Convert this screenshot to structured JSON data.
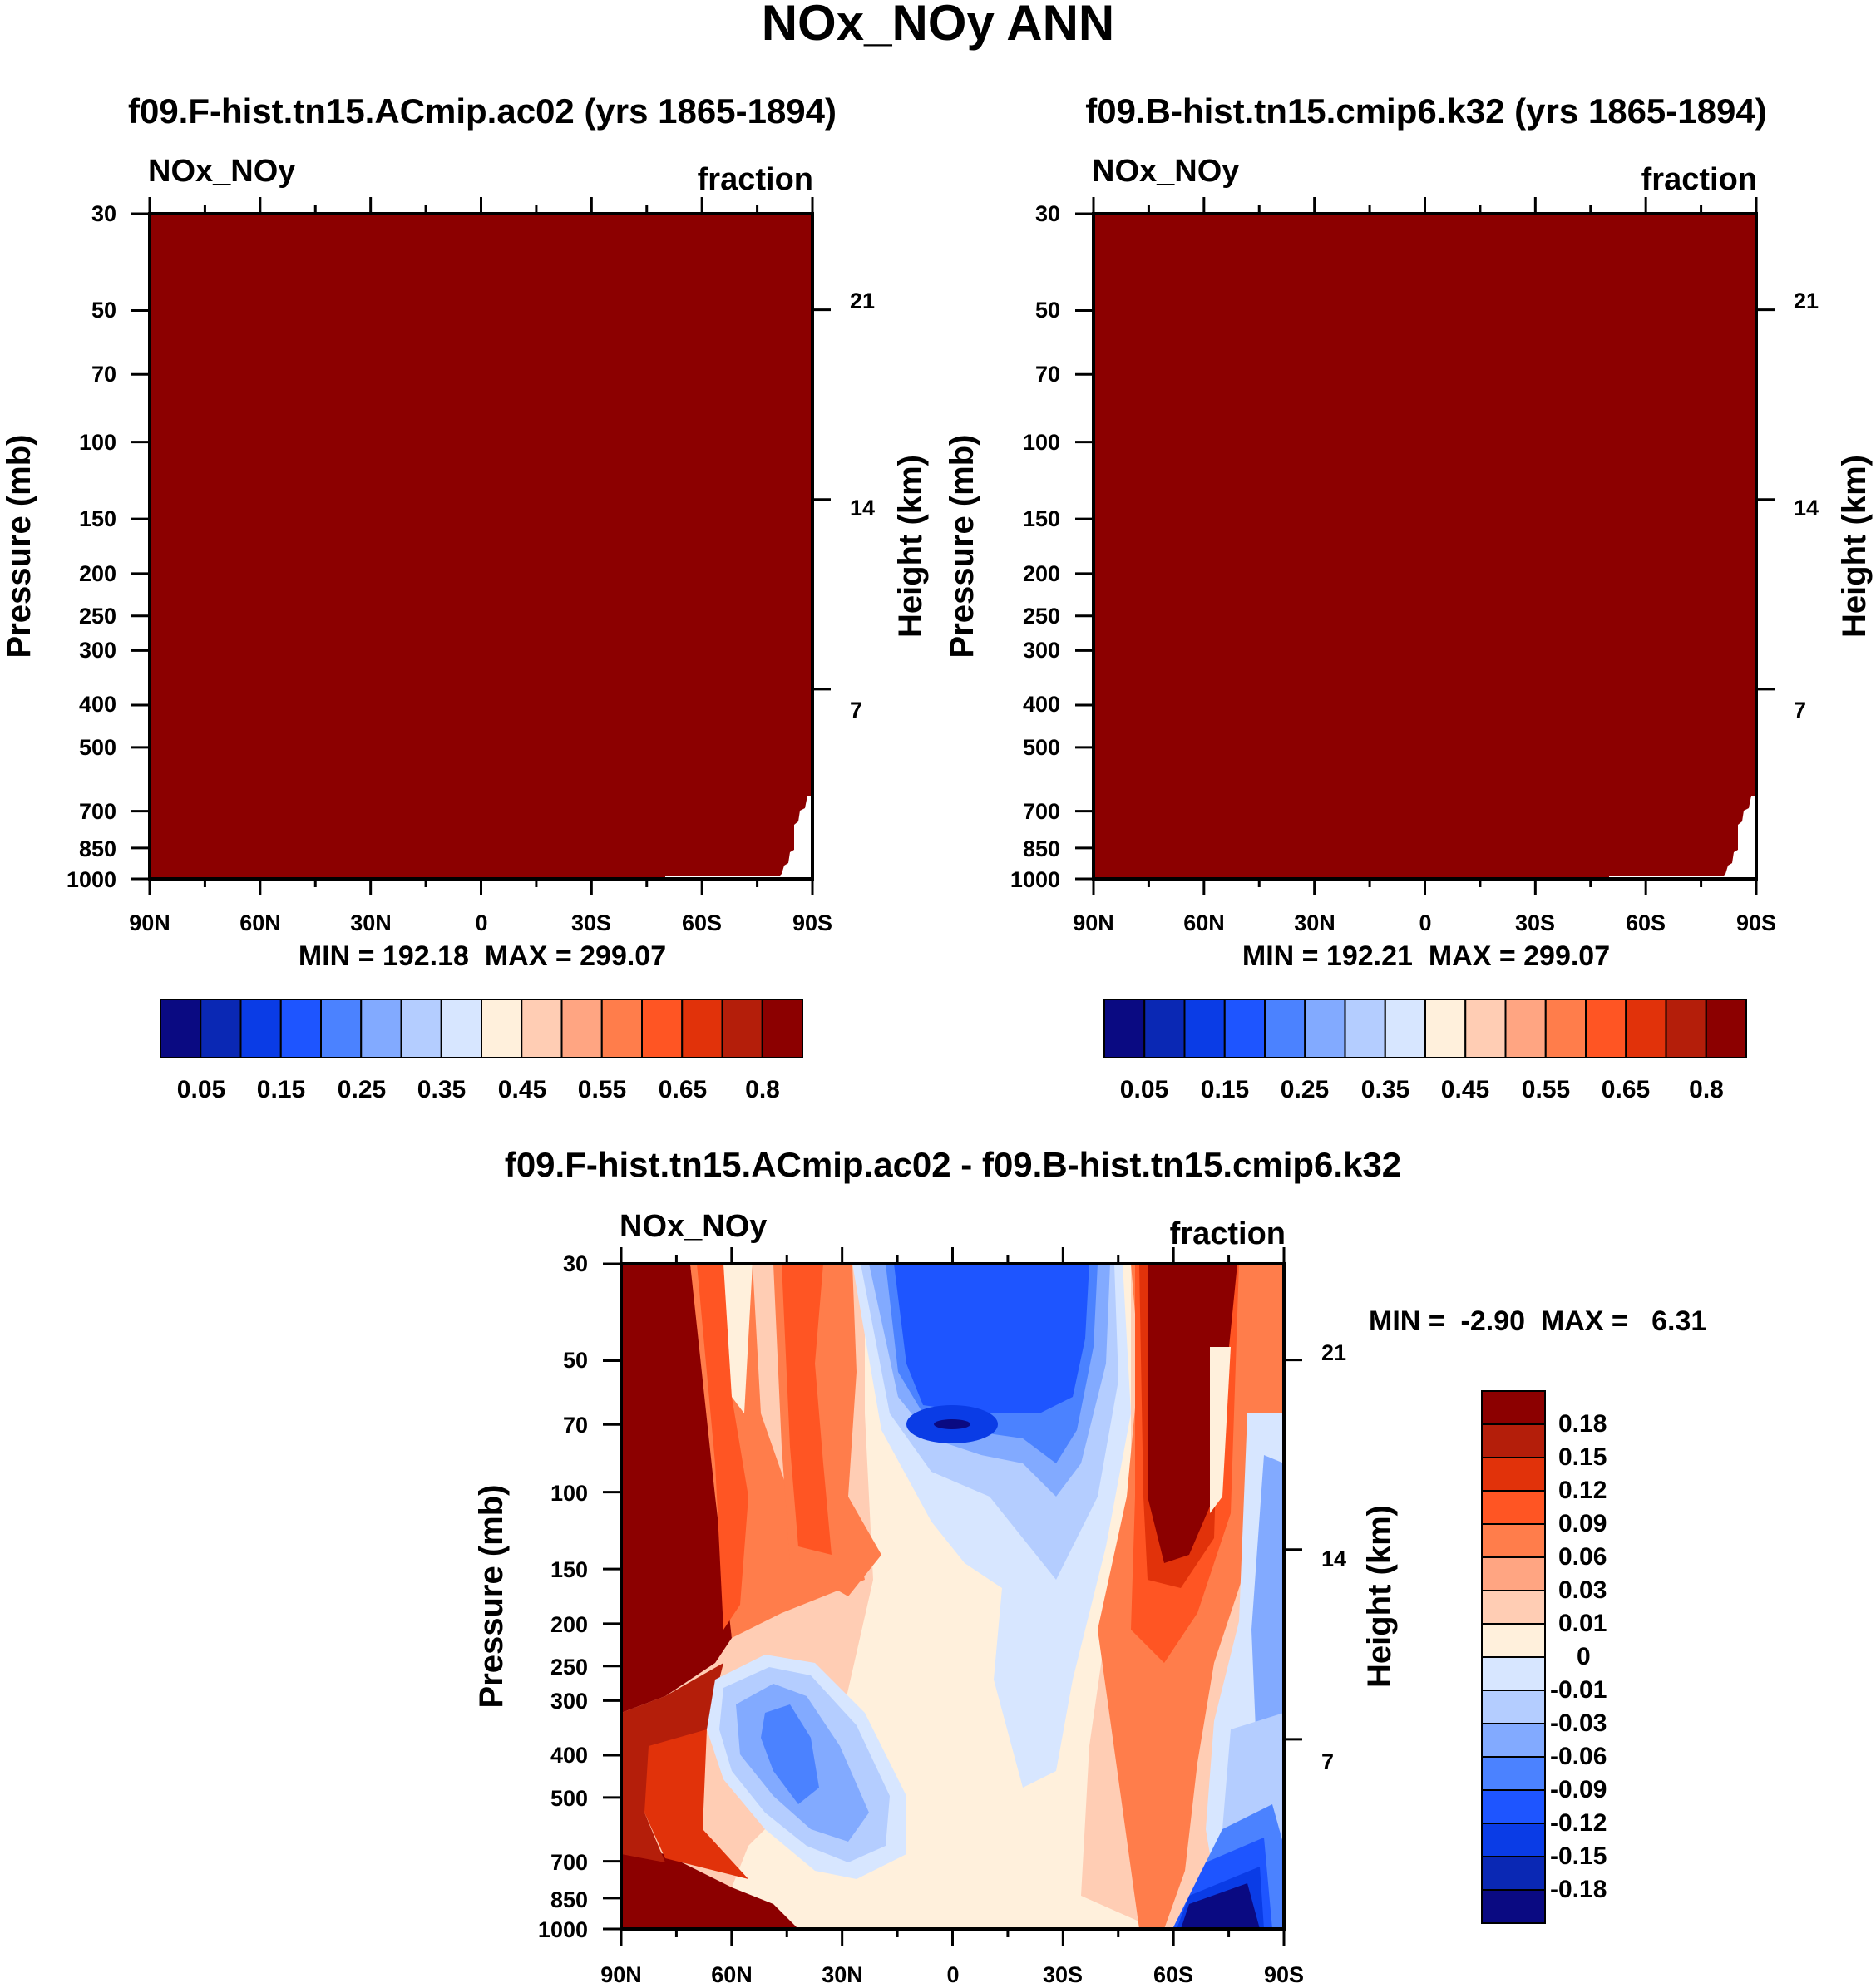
{
  "figure": {
    "title": "NOx_NOy ANN"
  },
  "chart_data": [
    {
      "type": "heatmap",
      "title": "f09.F-hist.tn15.ACmip.ac02 (yrs 1865-1894)",
      "left_string": "NOx_NOy",
      "right_string": "fraction",
      "xlabel": "",
      "ylabel": "Pressure (mb)",
      "y2label": "Height (km)",
      "x_ticks": [
        "90N",
        "60N",
        "30N",
        "0",
        "30S",
        "60S",
        "90S"
      ],
      "y_ticks": [
        "30",
        "50",
        "70",
        "100",
        "150",
        "200",
        "250",
        "300",
        "400",
        "500",
        "700",
        "850",
        "1000"
      ],
      "y2_ticks": [
        "21",
        "14",
        "7"
      ],
      "min_max_text": "MIN = 192.18  MAX = 299.07",
      "fill_color": "#8c0000",
      "colorbar_colors": [
        "#0a0a82",
        "#0a28b4",
        "#0a3ce6",
        "#1e55ff",
        "#4b82ff",
        "#82aaff",
        "#b4cdff",
        "#d7e6ff",
        "#fff0dc",
        "#ffcdb4",
        "#ffa582",
        "#ff7d4b",
        "#ff5523",
        "#e1320a",
        "#b41e0a",
        "#8c0000"
      ],
      "colorbar_labels": [
        "0.05",
        "0.15",
        "0.25",
        "0.35",
        "0.45",
        "0.55",
        "0.65",
        "0.8"
      ]
    },
    {
      "type": "heatmap",
      "title": "f09.B-hist.tn15.cmip6.k32 (yrs 1865-1894)",
      "left_string": "NOx_NOy",
      "right_string": "fraction",
      "xlabel": "",
      "ylabel": "Pressure (mb)",
      "y2label": "Height (km)",
      "x_ticks": [
        "90N",
        "60N",
        "30N",
        "0",
        "30S",
        "60S",
        "90S"
      ],
      "y_ticks": [
        "30",
        "50",
        "70",
        "100",
        "150",
        "200",
        "250",
        "300",
        "400",
        "500",
        "700",
        "850",
        "1000"
      ],
      "y2_ticks": [
        "21",
        "14",
        "7"
      ],
      "min_max_text": "MIN = 192.21  MAX = 299.07",
      "fill_color": "#8c0000",
      "colorbar_colors": [
        "#0a0a82",
        "#0a28b4",
        "#0a3ce6",
        "#1e55ff",
        "#4b82ff",
        "#82aaff",
        "#b4cdff",
        "#d7e6ff",
        "#fff0dc",
        "#ffcdb4",
        "#ffa582",
        "#ff7d4b",
        "#ff5523",
        "#e1320a",
        "#b41e0a",
        "#8c0000"
      ],
      "colorbar_labels": [
        "0.05",
        "0.15",
        "0.25",
        "0.35",
        "0.45",
        "0.55",
        "0.65",
        "0.8"
      ]
    },
    {
      "type": "heatmap",
      "title": "f09.F-hist.tn15.ACmip.ac02 - f09.B-hist.tn15.cmip6.k32",
      "left_string": "NOx_NOy",
      "right_string": "fraction",
      "xlabel": "",
      "ylabel": "Pressure (mb)",
      "y2label": "Height (km)",
      "x_ticks": [
        "90N",
        "60N",
        "30N",
        "0",
        "30S",
        "60S",
        "90S"
      ],
      "y_ticks": [
        "30",
        "50",
        "70",
        "100",
        "150",
        "200",
        "250",
        "300",
        "400",
        "500",
        "700",
        "850",
        "1000"
      ],
      "y2_ticks": [
        "21",
        "14",
        "7"
      ],
      "min_max_text": "MIN =  -2.90  MAX =   6.31",
      "colorbar_colors": [
        "#8c0000",
        "#b41e0a",
        "#e1320a",
        "#ff5523",
        "#ff7d4b",
        "#ffa582",
        "#ffcdb4",
        "#fff0dc",
        "#d7e6ff",
        "#b4cdff",
        "#82aaff",
        "#4b82ff",
        "#1e55ff",
        "#0a3ce6",
        "#0a28b4",
        "#0a0a82"
      ],
      "colorbar_labels": [
        "0.18",
        "0.15",
        "0.12",
        "0.09",
        "0.06",
        "0.03",
        "0.01",
        "0",
        "-0.01",
        "-0.03",
        "-0.06",
        "-0.09",
        "-0.12",
        "-0.15",
        "-0.18"
      ]
    }
  ]
}
